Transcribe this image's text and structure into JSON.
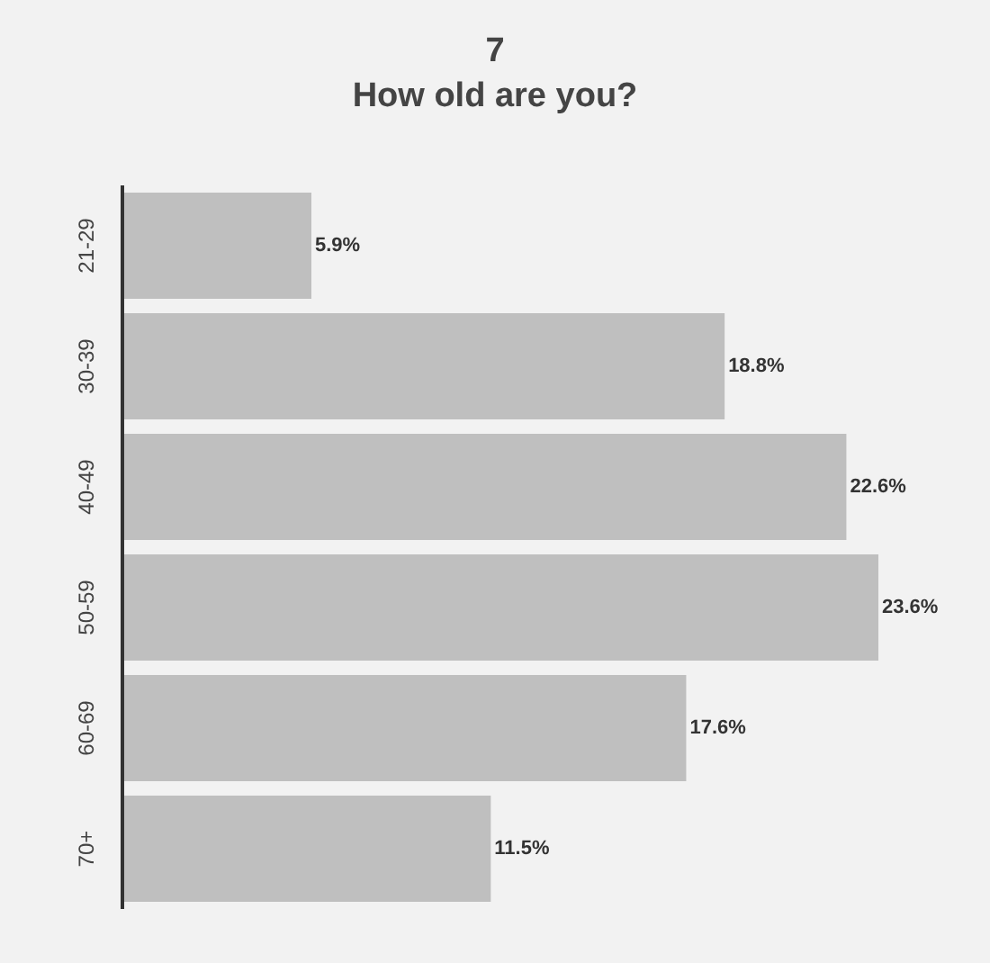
{
  "chart_data": {
    "type": "bar",
    "orientation": "horizontal",
    "title": "7",
    "subtitle": "How old are you?",
    "categories": [
      "21-29",
      "30-39",
      "40-49",
      "50-59",
      "60-69",
      "70+"
    ],
    "values": [
      5.9,
      18.8,
      22.6,
      23.6,
      17.6,
      11.5
    ],
    "value_labels": [
      "5.9%",
      "18.8%",
      "22.6%",
      "23.6%",
      "17.6%",
      "11.5%"
    ],
    "color": "#bfbfbf"
  }
}
